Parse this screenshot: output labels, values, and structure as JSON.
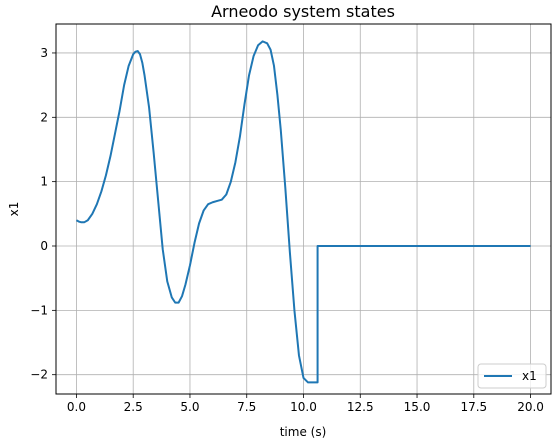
{
  "chart_data": {
    "type": "line",
    "title": "Arneodo system states",
    "xlabel": "time (s)",
    "ylabel": "x1",
    "xlim": [
      -0.9,
      20.9
    ],
    "ylim": [
      -2.3,
      3.45
    ],
    "xticks": [
      0.0,
      2.5,
      5.0,
      7.5,
      10.0,
      12.5,
      15.0,
      17.5,
      20.0
    ],
    "xtick_labels": [
      "0.0",
      "2.5",
      "5.0",
      "7.5",
      "10.0",
      "12.5",
      "15.0",
      "17.5",
      "20.0"
    ],
    "yticks": [
      -2,
      -1,
      0,
      1,
      2,
      3
    ],
    "ytick_labels": [
      "−2",
      "−1",
      "0",
      "1",
      "2",
      "3"
    ],
    "grid": true,
    "legend_position": "lower right",
    "colors": {
      "series": "#1f77b4",
      "grid": "#b0b0b0",
      "axes": "#000000"
    },
    "series": [
      {
        "name": "x1",
        "x": [
          0.0,
          0.1,
          0.2,
          0.35,
          0.5,
          0.7,
          0.9,
          1.1,
          1.3,
          1.5,
          1.7,
          1.9,
          2.1,
          2.3,
          2.5,
          2.6,
          2.7,
          2.8,
          2.9,
          3.0,
          3.2,
          3.4,
          3.6,
          3.8,
          4.0,
          4.2,
          4.35,
          4.5,
          4.65,
          4.8,
          5.0,
          5.2,
          5.4,
          5.6,
          5.8,
          6.0,
          6.2,
          6.4,
          6.6,
          6.8,
          7.0,
          7.2,
          7.4,
          7.6,
          7.8,
          8.0,
          8.2,
          8.4,
          8.55,
          8.7,
          8.85,
          9.0,
          9.2,
          9.4,
          9.6,
          9.8,
          10.0,
          10.2,
          10.4,
          10.55,
          10.62,
          10.62,
          11.0,
          12.0,
          14.0,
          16.0,
          18.0,
          20.0
        ],
        "y": [
          0.4,
          0.38,
          0.37,
          0.37,
          0.4,
          0.5,
          0.65,
          0.85,
          1.1,
          1.4,
          1.75,
          2.1,
          2.5,
          2.8,
          2.98,
          3.02,
          3.03,
          2.98,
          2.85,
          2.65,
          2.15,
          1.45,
          0.7,
          -0.05,
          -0.55,
          -0.8,
          -0.88,
          -0.88,
          -0.78,
          -0.6,
          -0.3,
          0.05,
          0.35,
          0.55,
          0.65,
          0.68,
          0.7,
          0.72,
          0.8,
          1.0,
          1.3,
          1.7,
          2.2,
          2.65,
          2.95,
          3.12,
          3.18,
          3.15,
          3.05,
          2.8,
          2.35,
          1.8,
          0.9,
          -0.1,
          -1.0,
          -1.7,
          -2.05,
          -2.12,
          -2.12,
          -2.12,
          -2.12,
          0.0,
          0.0,
          0.0,
          0.0,
          0.0,
          0.0,
          0.0
        ]
      }
    ]
  }
}
